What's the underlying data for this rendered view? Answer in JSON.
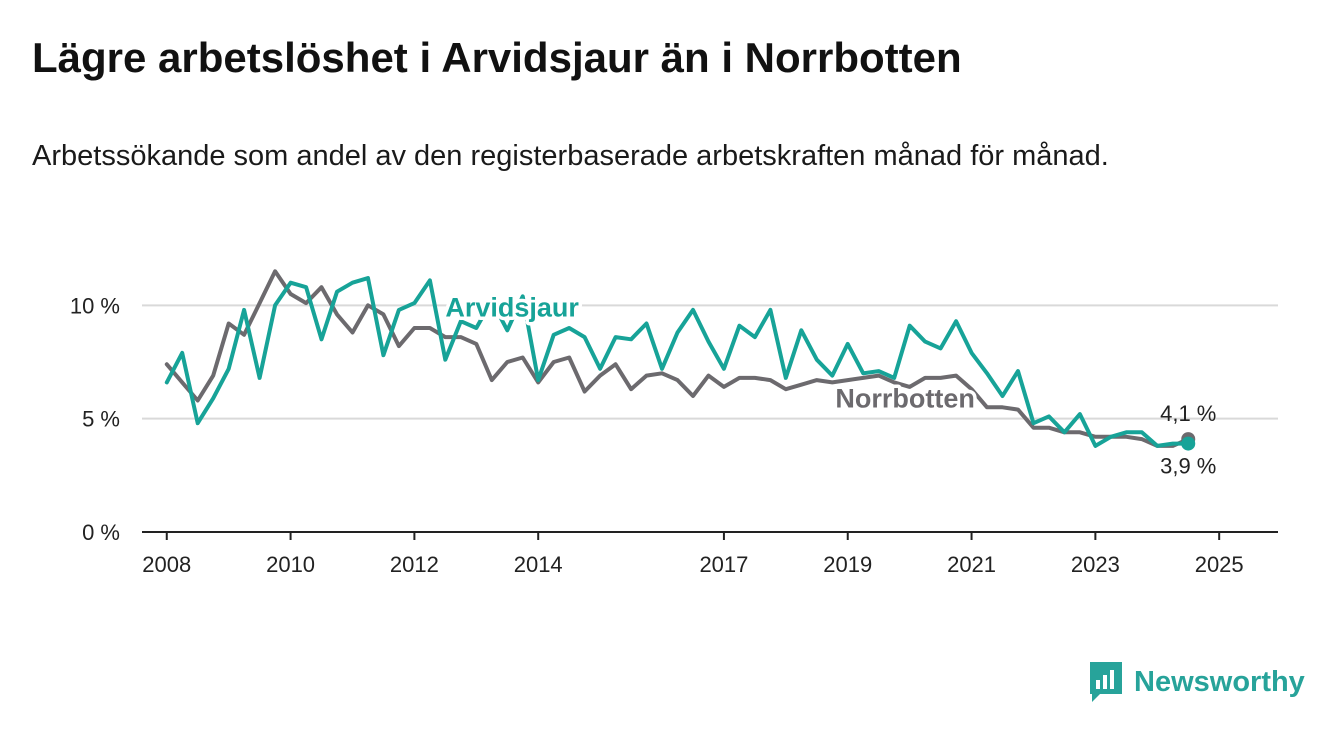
{
  "title": "Lägre arbetslöshet i Arvidsjaur än i Norrbotten",
  "subtitle": "Arbetssökande som andel av den registerbaserade arbetskraften månad för månad.",
  "brand": "Newsworthy",
  "colors": {
    "arvidsjaur": "#17a398",
    "norrbotten": "#6c6a6e",
    "grid": "#d9d9d9",
    "axis": "#222222",
    "brand": "#27a39a"
  },
  "chart_data": {
    "type": "line",
    "ylim": [
      0,
      12
    ],
    "yticks": [
      0,
      5,
      10
    ],
    "ytick_labels": [
      "0 %",
      "5 %",
      "10 %"
    ],
    "xlim": [
      2007.6,
      2025.95
    ],
    "xticks": [
      2008,
      2010,
      2012,
      2014,
      2017,
      2019,
      2021,
      2023,
      2025
    ],
    "xtick_labels": [
      "2008",
      "2010",
      "2012",
      "2014",
      "2017",
      "2019",
      "2021",
      "2023",
      "2025"
    ],
    "grid": "horizontal",
    "x_start": 2008.0,
    "x_step": 0.25,
    "series": [
      {
        "name": "Arvidsjaur",
        "end_label": "3,9 %",
        "values": [
          6.6,
          7.9,
          4.8,
          5.9,
          7.2,
          9.8,
          6.8,
          10.0,
          11.0,
          10.8,
          8.5,
          10.6,
          11.0,
          11.2,
          7.8,
          9.8,
          10.1,
          11.1,
          7.6,
          9.3,
          9.0,
          10.2,
          8.9,
          10.4,
          6.7,
          8.7,
          9.0,
          8.6,
          7.2,
          8.6,
          8.5,
          9.2,
          7.2,
          8.8,
          9.8,
          8.4,
          7.2,
          9.1,
          8.6,
          9.8,
          6.8,
          8.9,
          7.6,
          6.9,
          8.3,
          7.0,
          7.1,
          6.8,
          9.1,
          8.4,
          8.1,
          9.3,
          7.9,
          7.0,
          6.0,
          7.1,
          4.8,
          5.1,
          4.4,
          5.2,
          3.8,
          4.2,
          4.4,
          4.4,
          3.8,
          3.9,
          3.9
        ]
      },
      {
        "name": "Norrbotten",
        "end_label": "4,1 %",
        "values": [
          7.4,
          6.6,
          5.8,
          6.9,
          9.2,
          8.7,
          10.1,
          11.5,
          10.5,
          10.1,
          10.8,
          9.6,
          8.8,
          10.0,
          9.6,
          8.2,
          9.0,
          9.0,
          8.6,
          8.6,
          8.3,
          6.7,
          7.5,
          7.7,
          6.6,
          7.5,
          7.7,
          6.2,
          6.9,
          7.4,
          6.3,
          6.9,
          7.0,
          6.7,
          6.0,
          6.9,
          6.4,
          6.8,
          6.8,
          6.7,
          6.3,
          6.5,
          6.7,
          6.6,
          6.7,
          6.8,
          6.9,
          6.6,
          6.4,
          6.8,
          6.8,
          6.9,
          6.3,
          5.5,
          5.5,
          5.4,
          4.6,
          4.6,
          4.4,
          4.4,
          4.2,
          4.2,
          4.2,
          4.1,
          3.8,
          3.8,
          4.1
        ]
      }
    ],
    "annotations": [
      {
        "text": "Arvidsjaur",
        "series": "Arvidsjaur"
      },
      {
        "text": "Norrbotten",
        "series": "Norrbotten"
      }
    ]
  }
}
